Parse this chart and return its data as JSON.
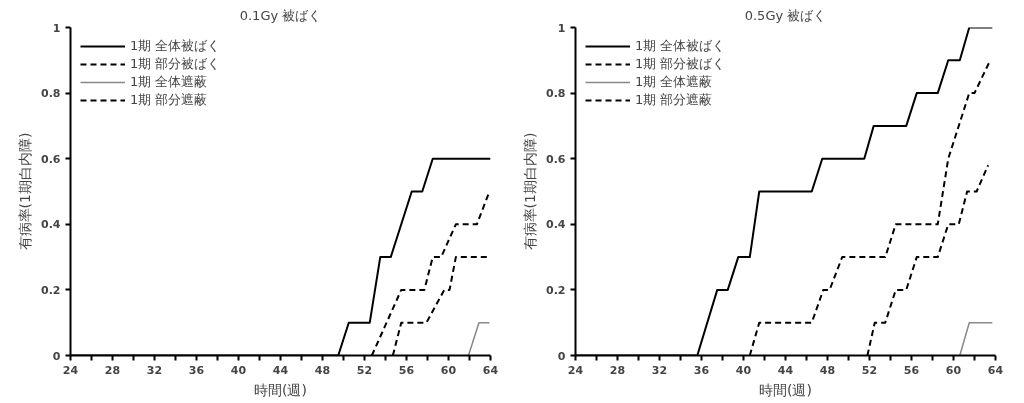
{
  "chart_data": [
    {
      "type": "line",
      "title": "0.1Gy 被ばく",
      "xlabel": "時間(週)",
      "ylabel": "有病率(1期白内障)",
      "xlim": [
        24,
        64
      ],
      "ylim": [
        0,
        1
      ],
      "xticks": [
        24,
        {
          "value": 26,
          "label": null
        },
        28,
        {
          "value": 30,
          "label": null
        },
        32,
        {
          "value": 34,
          "label": null
        },
        36,
        {
          "value": 38,
          "label": null
        },
        40,
        {
          "value": 42,
          "label": null
        },
        44,
        {
          "value": 46,
          "label": null
        },
        48,
        {
          "value": 50,
          "label": null
        },
        52,
        {
          "value": 54,
          "label": null
        },
        56,
        {
          "value": 58,
          "label": null
        },
        60,
        {
          "value": 62,
          "label": null
        },
        64
      ],
      "yticks": [
        0,
        0.2,
        0.4,
        0.6,
        0.8,
        1
      ],
      "grid": false,
      "legend": "top left",
      "marker": "none",
      "series": [
        {
          "name": "1期 全体被ばく",
          "color": "#000000",
          "line_style": "solid",
          "x": [
            24,
            49.5,
            50.5,
            52.5,
            53.5,
            54.5,
            56.5,
            57.5,
            58.5,
            64
          ],
          "values": [
            0,
            0,
            0.1,
            0.1,
            0.3,
            0.3,
            0.5,
            0.5,
            0.6,
            0.6
          ]
        },
        {
          "name": "1期 部分被ばく",
          "color": "#000000",
          "line_style": "dashed",
          "x": [
            52.7,
            55.5,
            57.7,
            58.5,
            59.3,
            60.7,
            62.7,
            63.9
          ],
          "values": [
            0,
            0.2,
            0.2,
            0.3,
            0.3,
            0.4,
            0.4,
            0.5
          ]
        },
        {
          "name": "1期 全体遮蔽",
          "color": "#888888",
          "line_style": "solid",
          "x": [
            61.9,
            62.9,
            63.9
          ],
          "values": [
            0,
            0.1,
            0.1
          ]
        },
        {
          "name": "1期 部分遮蔽",
          "color": "#000000",
          "line_style": "dashed",
          "x": [
            54.7,
            55.5,
            57.9,
            59.6,
            60.1,
            60.7,
            63.9
          ],
          "values": [
            0,
            0.1,
            0.1,
            0.2,
            0.2,
            0.3,
            0.3
          ]
        }
      ]
    },
    {
      "type": "line",
      "title": "0.5Gy 被ばく",
      "xlabel": "時間(週)",
      "ylabel": "有病率(1期白内障)",
      "xlim": [
        24,
        64
      ],
      "ylim": [
        0,
        1
      ],
      "xticks": [
        24,
        {
          "value": 26,
          "label": null
        },
        28,
        {
          "value": 30,
          "label": null
        },
        32,
        {
          "value": 34,
          "label": null
        },
        36,
        {
          "value": 38,
          "label": null
        },
        40,
        {
          "value": 42,
          "label": null
        },
        44,
        {
          "value": 46,
          "label": null
        },
        48,
        {
          "value": 50,
          "label": null
        },
        52,
        {
          "value": 54,
          "label": null
        },
        56,
        {
          "value": 58,
          "label": null
        },
        60,
        {
          "value": 62,
          "label": null
        },
        64
      ],
      "yticks": [
        0,
        0.2,
        0.4,
        0.6,
        0.8,
        1
      ],
      "grid": false,
      "legend": "top left",
      "marker": "none",
      "series": [
        {
          "name": "1期 全体被ばく",
          "color": "#000000",
          "line_style": "solid",
          "x": [
            24,
            35.6,
            37.5,
            38.5,
            39.5,
            40.6,
            41.5,
            46.5,
            47.5,
            51.5,
            52.4,
            55.5,
            56.5,
            58.5,
            59.5,
            60.6,
            61.5,
            63.7
          ],
          "values": [
            0,
            0,
            0.2,
            0.2,
            0.3,
            0.3,
            0.5,
            0.5,
            0.6,
            0.6,
            0.7,
            0.7,
            0.8,
            0.8,
            0.9,
            0.9,
            1,
            1
          ]
        },
        {
          "name": "1期 部分被ばく",
          "color": "#000000",
          "line_style": "dashed",
          "x": [
            40.6,
            41.5,
            46.5,
            47.6,
            48.2,
            49.4,
            53.5,
            54.5,
            58.5,
            59.5,
            61.5,
            62,
            63.5
          ],
          "values": [
            0,
            0.1,
            0.1,
            0.2,
            0.2,
            0.3,
            0.3,
            0.4,
            0.4,
            0.6,
            0.8,
            0.8,
            0.9
          ]
        },
        {
          "name": "1期 全体遮蔽",
          "color": "#888888",
          "line_style": "solid",
          "x": [
            60.6,
            61.5,
            63.7
          ],
          "values": [
            0,
            0.1,
            0.1
          ]
        },
        {
          "name": "1期 部分遮蔽",
          "color": "#000000",
          "line_style": "dashed",
          "x": [
            51.8,
            52.5,
            53.5,
            54.5,
            55.5,
            56.5,
            58.5,
            59.5,
            60.5,
            61.3,
            62.2,
            63.3
          ],
          "values": [
            0,
            0.1,
            0.1,
            0.2,
            0.2,
            0.3,
            0.3,
            0.4,
            0.4,
            0.5,
            0.5,
            0.58
          ]
        }
      ]
    }
  ]
}
